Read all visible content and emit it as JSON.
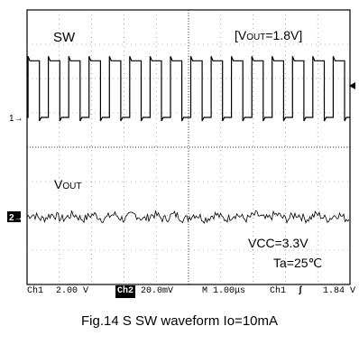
{
  "chart_data": {
    "type": "line",
    "title": "Fig.14 S SW waveform Io=10mA",
    "condition_label_prefix": "[V",
    "condition_label_sub": "OUT",
    "condition_label_suffix": "=1.8V]",
    "vcc_label": "VCC=3.3V",
    "ta_label": "Ta=25℃",
    "series": [
      {
        "name": "SW",
        "channel": "1",
        "volts_per_div": 2.0,
        "high_v": 3.3,
        "low_v": 0.0,
        "period_us": 0.63,
        "duty": 0.56,
        "phase_us": 0.03,
        "color": "#000000"
      },
      {
        "name_prefix": "V",
        "name_sub": "OUT",
        "channel": "2",
        "mv_per_div": 20.0,
        "ripple_mv": 5,
        "color": "#000000"
      }
    ],
    "status_bar": {
      "ch1_label": "Ch1",
      "ch1_scale": "2.00 V",
      "ch2_label": "Ch2",
      "ch2_scale": "20.0mV",
      "timebase": "M 1.00μs",
      "trigger_source": "Ch1",
      "trigger_slope": "ʃ",
      "trigger_level": "1.84 V"
    },
    "x_divisions": 10,
    "y_divisions": 8,
    "time_per_div_us": 1.0,
    "grid": true
  }
}
